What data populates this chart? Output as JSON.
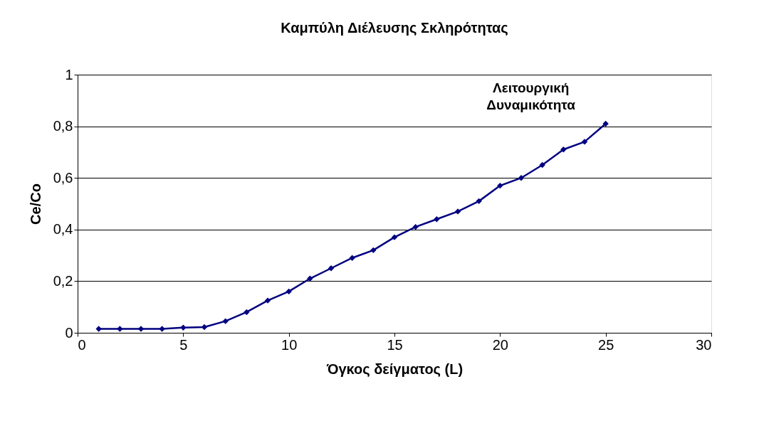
{
  "chart_data": {
    "type": "line",
    "title": "Καμπύλη Διέλευσης Σκληρότητας",
    "xlabel": "Όγκος δείγματος (L)",
    "ylabel": "Ce/Co",
    "x": [
      1,
      2,
      3,
      4,
      5,
      6,
      7,
      8,
      9,
      10,
      11,
      12,
      13,
      14,
      15,
      16,
      17,
      18,
      19,
      20,
      21,
      22,
      23,
      24,
      25
    ],
    "series": [
      {
        "color": "#000080",
        "values": [
          0.015,
          0.015,
          0.015,
          0.015,
          0.02,
          0.022,
          0.045,
          0.08,
          0.125,
          0.16,
          0.21,
          0.25,
          0.29,
          0.32,
          0.37,
          0.41,
          0.44,
          0.47,
          0.51,
          0.57,
          0.6,
          0.65,
          0.71,
          0.74,
          0.81
        ]
      }
    ],
    "xlim": [
      0,
      30
    ],
    "xticks": [
      0,
      5,
      10,
      15,
      20,
      25,
      30
    ],
    "ylim": [
      0,
      1
    ],
    "yticks": [
      0,
      {
        "value": 0.2,
        "label": "0,2"
      },
      {
        "value": 0.4,
        "label": "0,4"
      },
      {
        "value": 0.6,
        "label": "0,6"
      },
      {
        "value": 0.8,
        "label": "0,8"
      },
      1
    ],
    "grid": "y",
    "marker": "diamond",
    "line_style": "solid",
    "annotations": [
      {
        "text": "Λειτουργική Δυναμικότητα",
        "x": 25,
        "y": 0.81
      }
    ]
  }
}
